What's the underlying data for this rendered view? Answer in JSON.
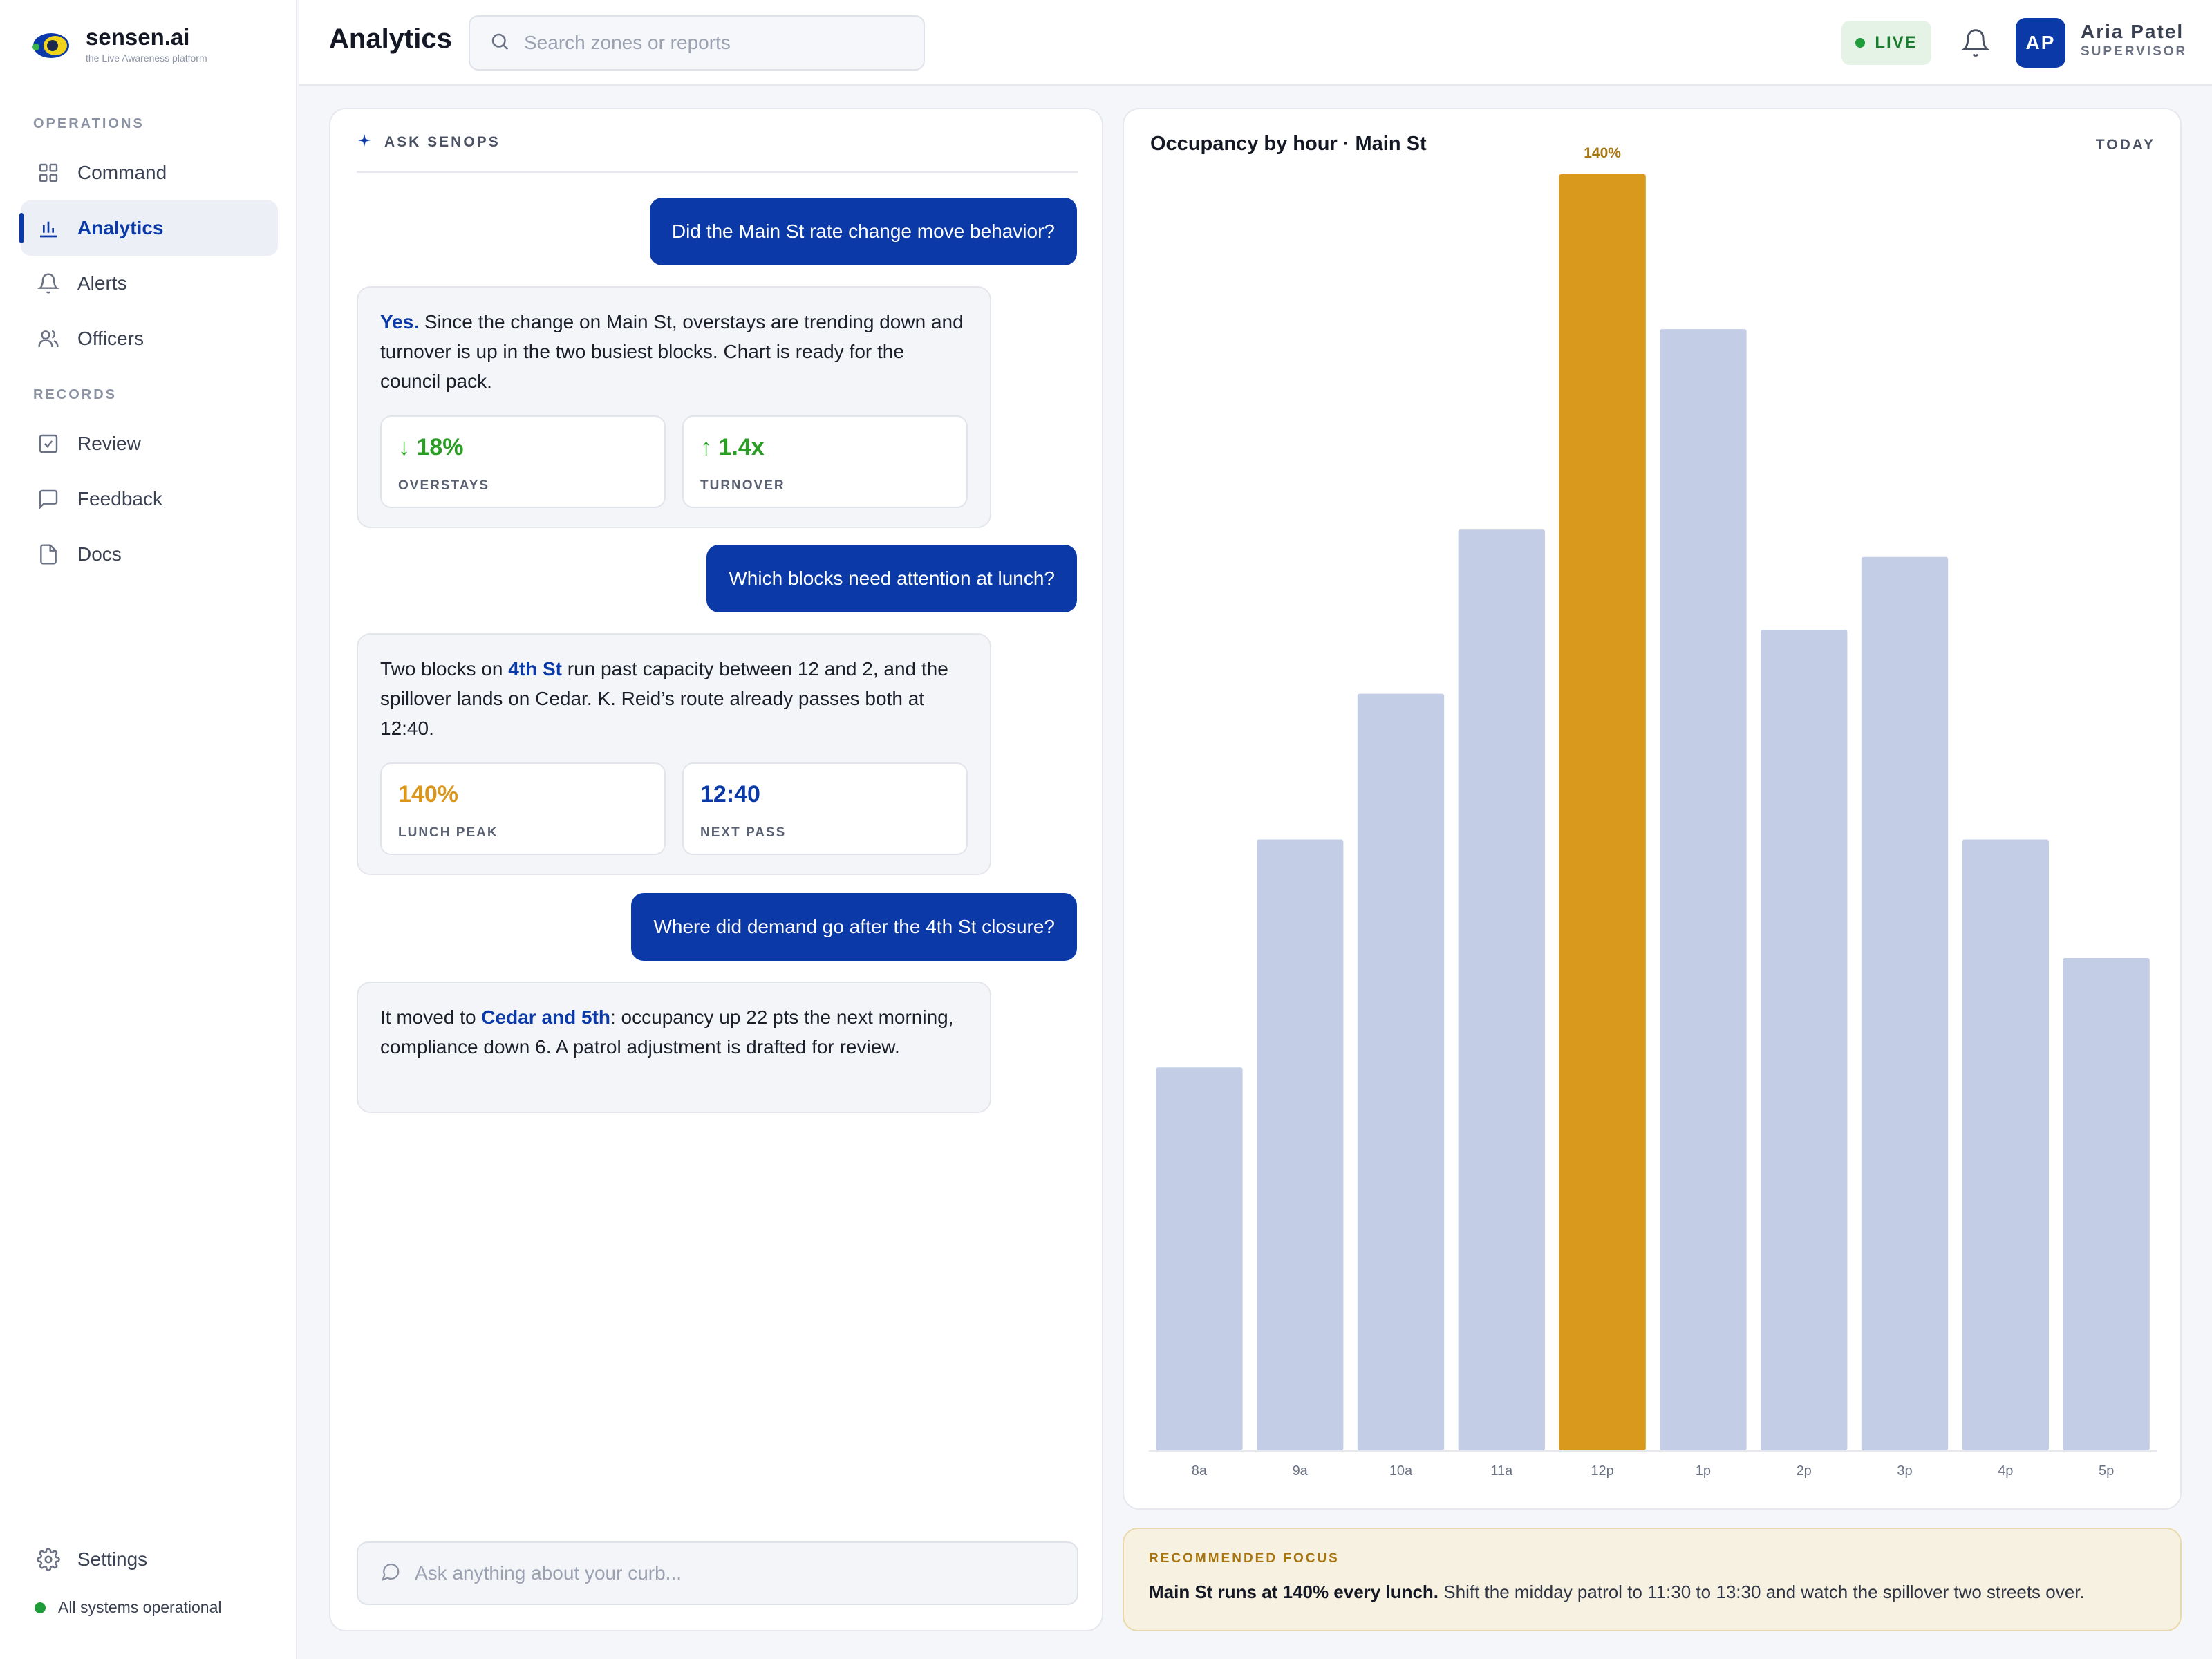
{
  "brand": {
    "name": "sensen.ai",
    "tagline": "the Live Awareness platform"
  },
  "sidebar": {
    "sections": [
      {
        "label": "OPERATIONS"
      },
      {
        "label": "RECORDS"
      }
    ],
    "items": [
      {
        "label": "Command",
        "icon": "grid-icon"
      },
      {
        "label": "Analytics",
        "icon": "bar-chart-icon",
        "active": true
      },
      {
        "label": "Alerts",
        "icon": "bell-icon"
      },
      {
        "label": "Officers",
        "icon": "users-icon"
      },
      {
        "label": "Review",
        "icon": "check-square-icon"
      },
      {
        "label": "Feedback",
        "icon": "message-square-icon"
      },
      {
        "label": "Docs",
        "icon": "file-icon"
      }
    ],
    "settings_label": "Settings",
    "status_text": "All systems operational"
  },
  "header": {
    "title": "Analytics",
    "search_placeholder": "Search zones or reports",
    "live_label": "LIVE",
    "user": {
      "initials": "AP",
      "name": "Aria Patel",
      "role": "SUPERVISOR"
    }
  },
  "chat": {
    "header_label": "ASK SENOPS",
    "input_placeholder": "Ask anything about your curb...",
    "messages": [
      {
        "role": "user",
        "text": "Did the Main St rate change move behavior?"
      },
      {
        "role": "bot",
        "lead": "Yes.",
        "text": " Since the change on Main St, overstays are trending down and turnover is up in the two busiest blocks. Chart is ready for the council pack.",
        "metrics": [
          {
            "value": "↓ 18%",
            "label": "OVERSTAYS"
          },
          {
            "value": "↑ 1.4x",
            "label": "TURNOVER"
          }
        ]
      },
      {
        "role": "user",
        "text": "Which blocks need attention at lunch?"
      },
      {
        "role": "bot",
        "pre": "Two blocks on ",
        "highlight": "4th St",
        "post": " run past capacity between 12 and 2, and the spillover lands on Cedar. K. Reid’s route already passes both at 12:40.",
        "metrics": [
          {
            "value": "140%",
            "label": "LUNCH PEAK"
          },
          {
            "value": "12:40",
            "label": "NEXT PASS"
          }
        ]
      },
      {
        "role": "user",
        "text": "Where did demand go after the 4th St closure?"
      },
      {
        "role": "bot",
        "pre": "It moved to ",
        "highlight": "Cedar and 5th",
        "post": ": occupancy up 22 pts the next morning, compliance down 6. A patrol adjustment is drafted for review."
      }
    ]
  },
  "chart_data": {
    "type": "bar",
    "title": "Occupancy by hour · Main St",
    "period": "TODAY",
    "categories": [
      "8a",
      "9a",
      "10a",
      "11a",
      "12p",
      "1p",
      "2p",
      "3p",
      "4p",
      "5p"
    ],
    "values": [
      42,
      67,
      83,
      101,
      140,
      123,
      90,
      98,
      67,
      54
    ],
    "unit": "%",
    "highlight_index": 4,
    "highlight_label": "140%",
    "ylim": [
      0,
      140
    ],
    "colors": {
      "bar": "#c3cde6",
      "highlight": "#d9991c",
      "highlight_label": "#a8740e"
    },
    "grid": false
  },
  "recommendation": {
    "label": "RECOMMENDED FOCUS",
    "bold": "Main St runs at 140% every lunch.",
    "text": " Shift the midday patrol to 11:30 to 13:30 and watch the spillover two streets over."
  },
  "colors": {
    "brand": "#0b3aa8",
    "live": "#1f9d3a",
    "accent": "#d9991c"
  }
}
